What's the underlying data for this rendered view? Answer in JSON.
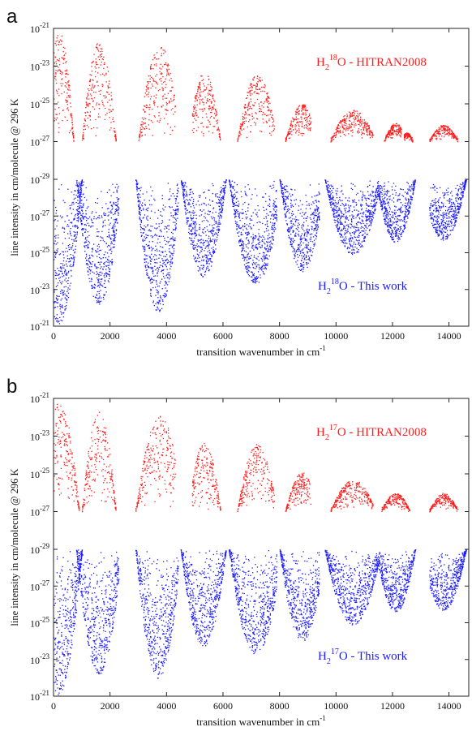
{
  "chart_data": [
    {
      "type": "scatter",
      "panel_letter": "a",
      "xlabel_text": "transition wavenumber in cm",
      "xlabel_sup": "-1",
      "ylabel": "line intensity in cm/molecule @ 296 K",
      "xlim": [
        0,
        14700
      ],
      "x_ticks": [
        0,
        2000,
        4000,
        6000,
        8000,
        10000,
        12000,
        14000
      ],
      "x_tick_labels": [
        "0",
        "2000",
        "4000",
        "6000",
        "8000",
        "10000",
        "12000",
        "14000"
      ],
      "upper_y_ticks_exp": [
        "-21",
        "-23",
        "-25",
        "-27",
        "-29"
      ],
      "lower_y_ticks_exp": [
        "-27",
        "-25",
        "-23",
        "-21"
      ],
      "y_tick_base": "10",
      "colors": {
        "upper": "#ff1a1a",
        "lower": "#1a1aff"
      },
      "series": [
        {
          "name": "H218O - HITRAN2008",
          "label_parts": [
            "H",
            "2",
            "18",
            "O - HITRAN2008"
          ],
          "color": "#ff1a1a",
          "log10_intensity_range": [
            -27,
            -21
          ],
          "bands": [
            {
              "x_range": [
                0,
                700
              ],
              "peak_x": 200,
              "peak_log10": -21.2
            },
            {
              "x_range": [
                1000,
                2200
              ],
              "peak_x": 1600,
              "peak_log10": -21.7
            },
            {
              "x_range": [
                3000,
                4300
              ],
              "peak_x": 3750,
              "peak_log10": -21.9
            },
            {
              "x_range": [
                4900,
                5900
              ],
              "peak_x": 5330,
              "peak_log10": -23.3
            },
            {
              "x_range": [
                6500,
                7800
              ],
              "peak_x": 7200,
              "peak_log10": -23.4
            },
            {
              "x_range": [
                8200,
                9100
              ],
              "peak_x": 8800,
              "peak_log10": -25.0
            },
            {
              "x_range": [
                9800,
                11300
              ],
              "peak_x": 10600,
              "peak_log10": -25.3
            },
            {
              "x_range": [
                11700,
                12300
              ],
              "peak_x": 12100,
              "peak_log10": -26.0
            },
            {
              "x_range": [
                12400,
                12700
              ],
              "peak_x": 12500,
              "peak_log10": -26.5
            },
            {
              "x_range": [
                13300,
                14300
              ],
              "peak_x": 13800,
              "peak_log10": -26.1
            }
          ]
        },
        {
          "name": "H218O - This work",
          "label_parts": [
            "H",
            "2",
            "18",
            "O - This work"
          ],
          "color": "#1a1aff",
          "log10_intensity_range": [
            -29,
            -21
          ],
          "bands": [
            {
              "x_range": [
                0,
                1000
              ],
              "peak_x": 150,
              "peak_log10": -21.1
            },
            {
              "x_range": [
                800,
                2300
              ],
              "peak_x": 1600,
              "peak_log10": -22.2
            },
            {
              "x_range": [
                2900,
                4400
              ],
              "peak_x": 3700,
              "peak_log10": -21.8
            },
            {
              "x_range": [
                4500,
                6100
              ],
              "peak_x": 5300,
              "peak_log10": -23.7
            },
            {
              "x_range": [
                6200,
                7900
              ],
              "peak_x": 7150,
              "peak_log10": -23.3
            },
            {
              "x_range": [
                8000,
                9400
              ],
              "peak_x": 8800,
              "peak_log10": -24.0
            },
            {
              "x_range": [
                9600,
                11500
              ],
              "peak_x": 10600,
              "peak_log10": -24.9
            },
            {
              "x_range": [
                11500,
                12800
              ],
              "peak_x": 12100,
              "peak_log10": -25.6
            },
            {
              "x_range": [
                13300,
                14600
              ],
              "peak_x": 13800,
              "peak_log10": -25.7
            }
          ]
        }
      ]
    },
    {
      "type": "scatter",
      "panel_letter": "b",
      "xlabel_text": "transition wavenumber in cm",
      "xlabel_sup": "-1",
      "ylabel": "line intensity in cm/molecule @ 296 K",
      "xlim": [
        0,
        14700
      ],
      "x_ticks": [
        0,
        2000,
        4000,
        6000,
        8000,
        10000,
        12000,
        14000
      ],
      "x_tick_labels": [
        "0",
        "2000",
        "4000",
        "6000",
        "8000",
        "10000",
        "12000",
        "14000"
      ],
      "upper_y_ticks_exp": [
        "-21",
        "-23",
        "-25",
        "-27",
        "-29"
      ],
      "lower_y_ticks_exp": [
        "-27",
        "-25",
        "-23",
        "-21"
      ],
      "y_tick_base": "10",
      "colors": {
        "upper": "#ff1a1a",
        "lower": "#1a1aff"
      },
      "series": [
        {
          "name": "H217O - HITRAN2008",
          "label_parts": [
            "H",
            "2",
            "17",
            "O - HITRAN2008"
          ],
          "color": "#ff1a1a",
          "log10_intensity_range": [
            -27,
            -21
          ],
          "bands": [
            {
              "x_range": [
                0,
                900
              ],
              "peak_x": 200,
              "peak_log10": -21.2
            },
            {
              "x_range": [
                1000,
                2200
              ],
              "peak_x": 1600,
              "peak_log10": -21.7
            },
            {
              "x_range": [
                2900,
                4300
              ],
              "peak_x": 3750,
              "peak_log10": -21.9
            },
            {
              "x_range": [
                4900,
                5900
              ],
              "peak_x": 5330,
              "peak_log10": -23.3
            },
            {
              "x_range": [
                6500,
                7800
              ],
              "peak_x": 7200,
              "peak_log10": -23.4
            },
            {
              "x_range": [
                8200,
                9100
              ],
              "peak_x": 8800,
              "peak_log10": -24.9
            },
            {
              "x_range": [
                9800,
                11300
              ],
              "peak_x": 10600,
              "peak_log10": -25.3
            },
            {
              "x_range": [
                11600,
                12600
              ],
              "peak_x": 12100,
              "peak_log10": -26.0
            },
            {
              "x_range": [
                13300,
                14300
              ],
              "peak_x": 13800,
              "peak_log10": -26.0
            }
          ]
        },
        {
          "name": "H217O - This work",
          "label_parts": [
            "H",
            "2",
            "17",
            "O - This work"
          ],
          "color": "#1a1aff",
          "log10_intensity_range": [
            -29,
            -21
          ],
          "bands": [
            {
              "x_range": [
                0,
                1000
              ],
              "peak_x": 150,
              "peak_log10": -21.1
            },
            {
              "x_range": [
                800,
                2300
              ],
              "peak_x": 1600,
              "peak_log10": -22.2
            },
            {
              "x_range": [
                2900,
                4400
              ],
              "peak_x": 3700,
              "peak_log10": -22.0
            },
            {
              "x_range": [
                4500,
                6100
              ],
              "peak_x": 5300,
              "peak_log10": -23.7
            },
            {
              "x_range": [
                6200,
                7900
              ],
              "peak_x": 7150,
              "peak_log10": -23.3
            },
            {
              "x_range": [
                8000,
                9400
              ],
              "peak_x": 8800,
              "peak_log10": -24.0
            },
            {
              "x_range": [
                9600,
                11500
              ],
              "peak_x": 10600,
              "peak_log10": -24.9
            },
            {
              "x_range": [
                11500,
                12800
              ],
              "peak_x": 12100,
              "peak_log10": -25.6
            },
            {
              "x_range": [
                13300,
                14600
              ],
              "peak_x": 13800,
              "peak_log10": -25.7
            }
          ]
        }
      ]
    }
  ]
}
